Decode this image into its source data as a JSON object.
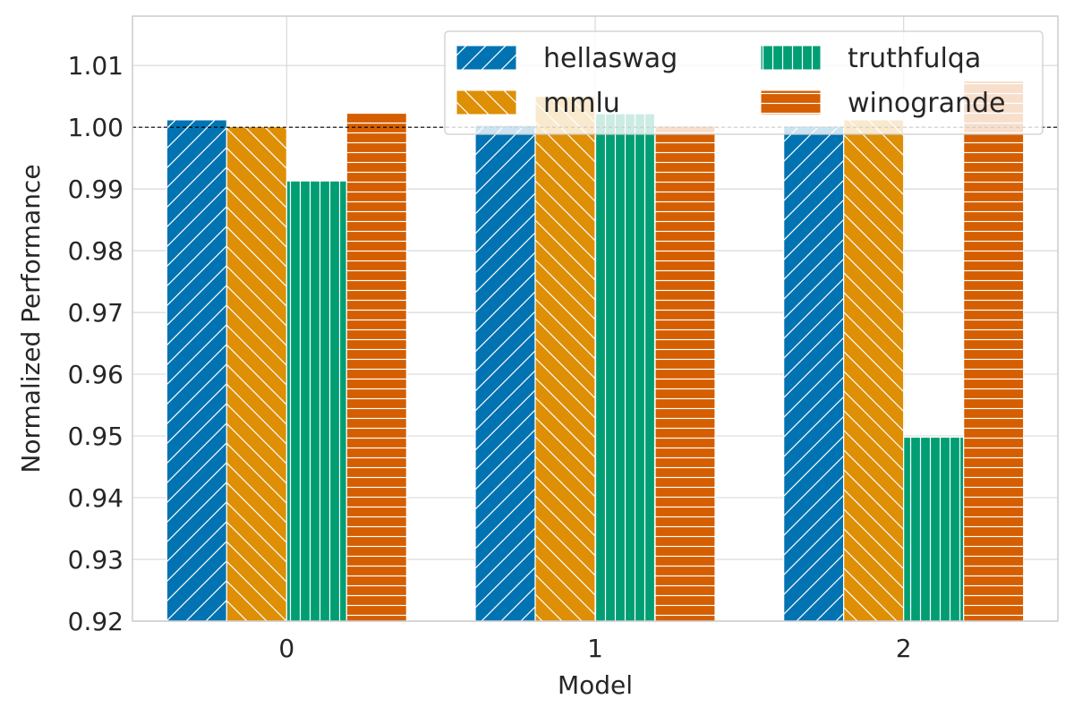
{
  "chart_data": {
    "type": "bar",
    "title": "",
    "xlabel": "Model",
    "ylabel": "Normalized Performance",
    "categories": [
      "0",
      "1",
      "2"
    ],
    "ylim": [
      0.92,
      1.018
    ],
    "yticks": [
      0.92,
      0.93,
      0.94,
      0.95,
      0.96,
      0.97,
      0.98,
      0.99,
      1.0,
      1.01
    ],
    "ytick_labels": [
      "0.92",
      "0.93",
      "0.94",
      "0.95",
      "0.96",
      "0.97",
      "0.98",
      "0.99",
      "1.00",
      "1.01"
    ],
    "reference_line": 1.0,
    "grid": true,
    "legend_position": "top-right",
    "series": [
      {
        "name": "hellaswag",
        "color": "#0173b2",
        "pattern": "diag-up",
        "values": [
          1.0012,
          1.0003,
          1.0002
        ]
      },
      {
        "name": "mmlu",
        "color": "#de8f05",
        "pattern": "diag-down",
        "values": [
          1.0001,
          1.005,
          1.0012
        ]
      },
      {
        "name": "truthfulqa",
        "color": "#029e73",
        "pattern": "vertical",
        "values": [
          0.9913,
          1.0022,
          0.9498
        ]
      },
      {
        "name": "winogrande",
        "color": "#d55e00",
        "pattern": "horizontal",
        "values": [
          1.0023,
          1.0002,
          1.0075
        ]
      }
    ]
  }
}
